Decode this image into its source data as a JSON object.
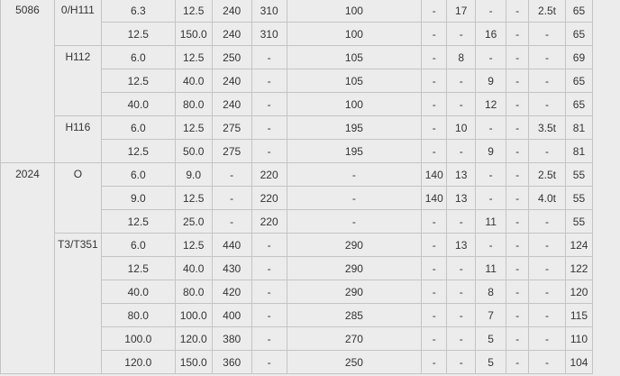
{
  "columns": 15,
  "groups": [
    {
      "alloy": "5086",
      "tempers": [
        {
          "temper": "0/H111",
          "rows": [
            [
              "6.3",
              "12.5",
              "240",
              "310",
              "100",
              "-",
              "17",
              "-",
              "-",
              "2.5t",
              "65"
            ],
            [
              "12.5",
              "150.0",
              "240",
              "310",
              "100",
              "-",
              "-",
              "16",
              "-",
              "-",
              "65"
            ]
          ]
        },
        {
          "temper": "H112",
          "rows": [
            [
              "6.0",
              "12.5",
              "250",
              "-",
              "105",
              "-",
              "8",
              "-",
              "-",
              "-",
              "69"
            ],
            [
              "12.5",
              "40.0",
              "240",
              "-",
              "105",
              "-",
              "-",
              "9",
              "-",
              "-",
              "65"
            ],
            [
              "40.0",
              "80.0",
              "240",
              "-",
              "100",
              "-",
              "-",
              "12",
              "-",
              "-",
              "65"
            ]
          ]
        },
        {
          "temper": "H116",
          "rows": [
            [
              "6.0",
              "12.5",
              "275",
              "-",
              "195",
              "-",
              "10",
              "-",
              "-",
              "3.5t",
              "81"
            ],
            [
              "12.5",
              "50.0",
              "275",
              "-",
              "195",
              "-",
              "-",
              "9",
              "-",
              "-",
              "81"
            ]
          ]
        }
      ]
    },
    {
      "alloy": "2024",
      "tempers": [
        {
          "temper": "O",
          "rows": [
            [
              "6.0",
              "9.0",
              "-",
              "220",
              "-",
              "140",
              "13",
              "-",
              "-",
              "2.5t",
              "55"
            ],
            [
              "9.0",
              "12.5",
              "-",
              "220",
              "-",
              "140",
              "13",
              "-",
              "-",
              "4.0t",
              "55"
            ],
            [
              "12.5",
              "25.0",
              "-",
              "220",
              "-",
              "-",
              "-",
              "11",
              "-",
              "-",
              "55"
            ]
          ]
        },
        {
          "temper": "T3/T351",
          "rows": [
            [
              "6.0",
              "12.5",
              "440",
              "-",
              "290",
              "-",
              "13",
              "-",
              "-",
              "-",
              "124"
            ],
            [
              "12.5",
              "40.0",
              "430",
              "-",
              "290",
              "-",
              "-",
              "11",
              "-",
              "-",
              "122"
            ],
            [
              "40.0",
              "80.0",
              "420",
              "-",
              "290",
              "-",
              "-",
              "8",
              "-",
              "-",
              "120"
            ],
            [
              "80.0",
              "100.0",
              "400",
              "-",
              "285",
              "-",
              "-",
              "7",
              "-",
              "-",
              "115"
            ],
            [
              "100.0",
              "120.0",
              "380",
              "-",
              "270",
              "-",
              "-",
              "5",
              "-",
              "-",
              "110"
            ],
            [
              "120.0",
              "150.0",
              "360",
              "-",
              "250",
              "-",
              "-",
              "5",
              "-",
              "-",
              "104"
            ]
          ]
        }
      ]
    }
  ]
}
